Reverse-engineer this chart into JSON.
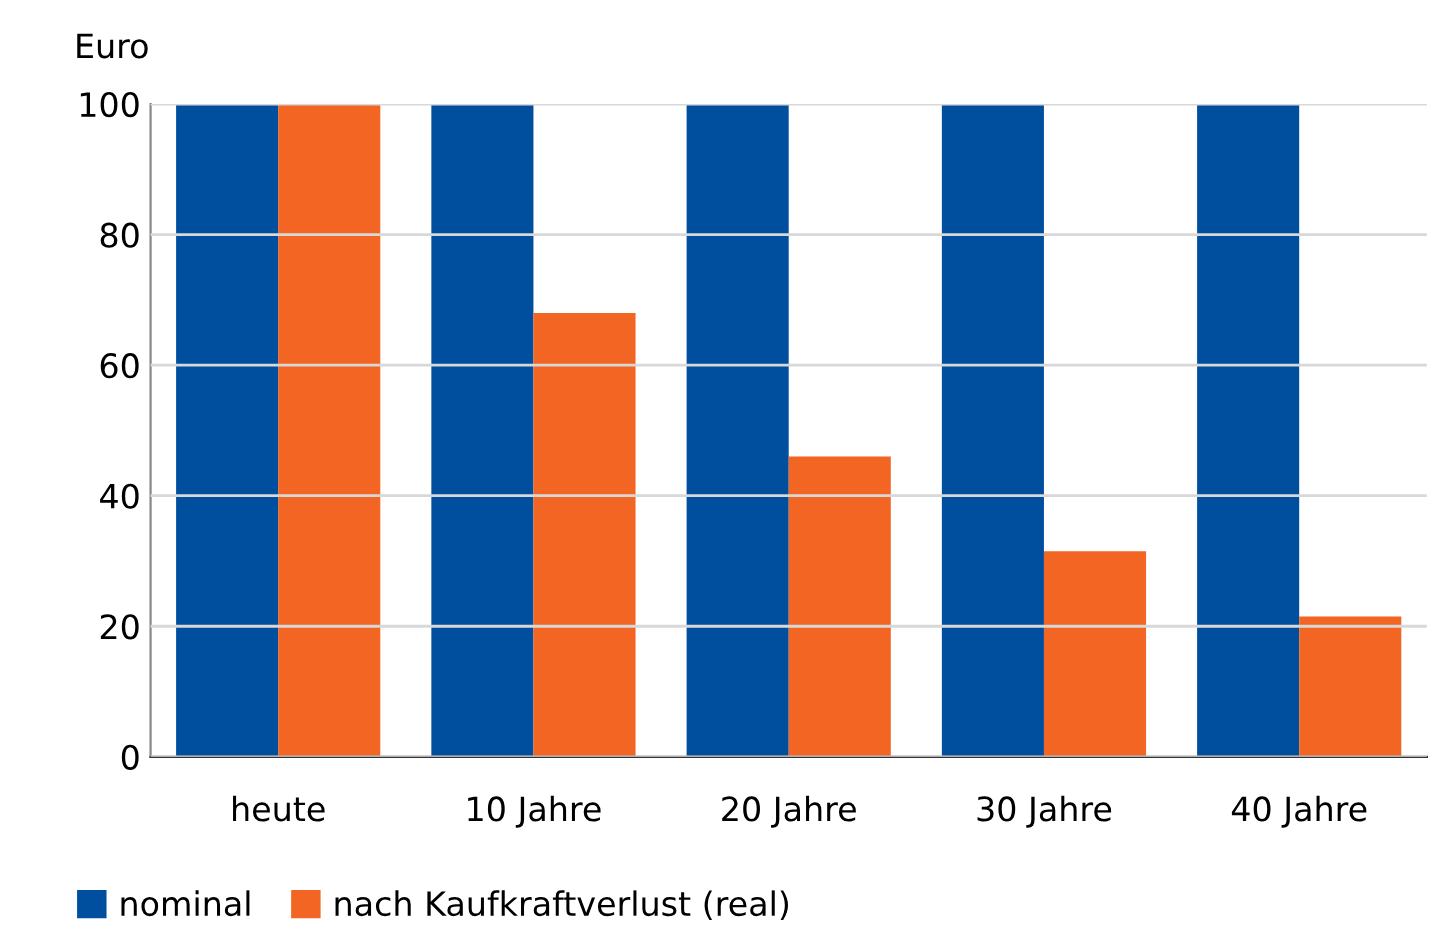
{
  "chart_data": {
    "type": "bar",
    "ylabel": "Euro",
    "categories": [
      "heute",
      "10 Jahre",
      "20 Jahre",
      "30 Jahre",
      "40 Jahre"
    ],
    "series": [
      {
        "name": "nominal",
        "color": "#004f9f",
        "values": [
          100,
          100,
          100,
          100,
          100
        ]
      },
      {
        "name": "nach Kaufkraftverlust (real)",
        "color": "#f26522",
        "values": [
          100,
          68,
          46,
          31.5,
          21.5
        ]
      }
    ],
    "ylim": [
      0,
      100
    ],
    "yticks": [
      0,
      20,
      40,
      60,
      80,
      100
    ],
    "grid": "y",
    "legend": "bottom left"
  }
}
